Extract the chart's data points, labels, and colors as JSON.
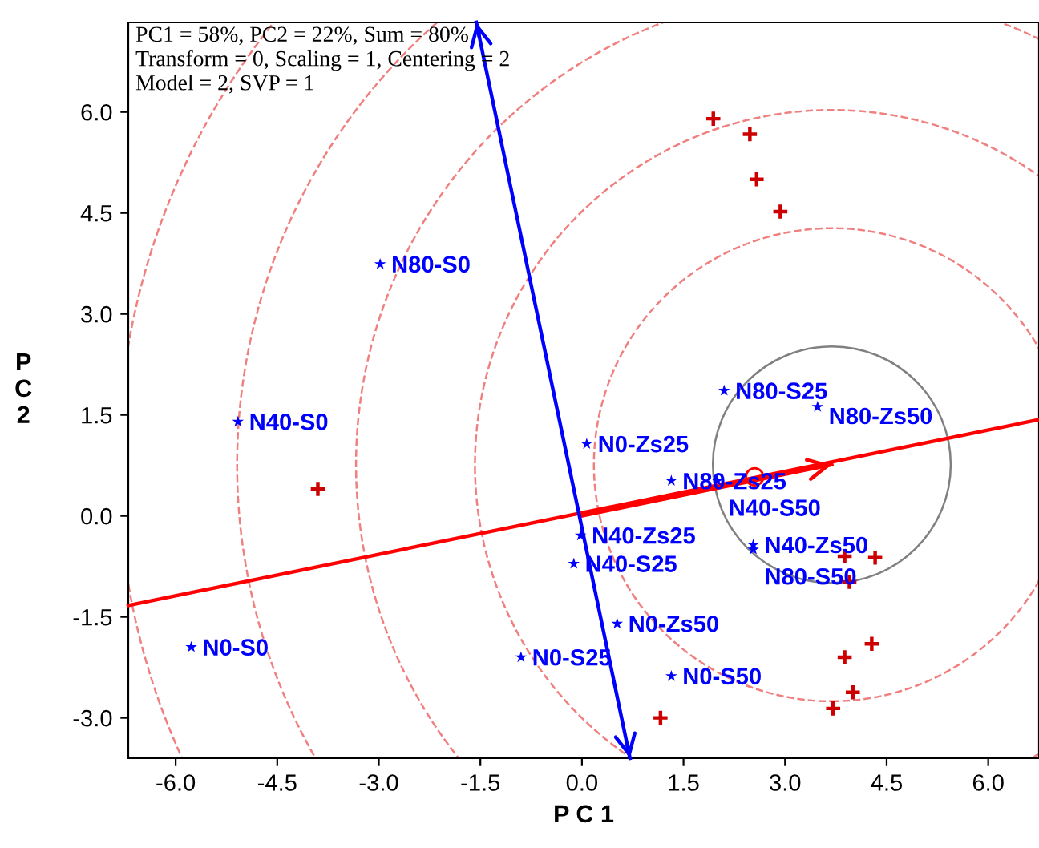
{
  "chart_data": {
    "type": "scatter",
    "xlabel": "P C 1",
    "ylabel": "P C 2",
    "xlim": [
      -6.7,
      6.75
    ],
    "ylim": [
      -3.6,
      7.33
    ],
    "xticks": [
      {
        "value": -6,
        "label": "-6.0"
      },
      -4.5,
      {
        "value": -3,
        "label": "-3.0"
      },
      -1.5,
      {
        "value": 0,
        "label": "0.0"
      },
      1.5,
      {
        "value": 3,
        "label": "3.0"
      },
      4.5,
      {
        "value": 6,
        "label": "6.0"
      }
    ],
    "yticks": [
      {
        "value": -3,
        "label": "-3.0"
      },
      -1.5,
      {
        "value": 0,
        "label": "0.0"
      },
      1.5,
      {
        "value": 3,
        "label": "3.0"
      },
      4.5,
      {
        "value": 6,
        "label": "6.0"
      }
    ],
    "grid": false,
    "legend": false,
    "annotations": [
      "PC1 = 58%, PC2 = 22%, Sum = 80%",
      "Transform = 0, Scaling = 1, Centering = 2",
      "Model = 2, SVP = 1",
      {
        "text": "N80-S0",
        "x": -2.98,
        "y": 3.74
      },
      {
        "text": "N40-S0",
        "x": -5.08,
        "y": 1.4
      },
      {
        "text": "N0-S0",
        "x": -5.77,
        "y": -1.95
      },
      {
        "text": "N80-S25",
        "x": 2.1,
        "y": 1.86
      },
      {
        "text": "N80-Zs50",
        "x": 3.48,
        "y": 1.62
      },
      {
        "text": "N0-Zs25",
        "x": 0.07,
        "y": 1.07
      },
      {
        "text": "N80-Zs25",
        "x": 1.32,
        "y": 0.52
      },
      {
        "text": "N40-S50",
        "x": 2.0,
        "y": 0.52
      },
      {
        "text": "N40-Zs25",
        "x": -0.02,
        "y": -0.29
      },
      {
        "text": "N40-S25",
        "x": -0.12,
        "y": -0.71
      },
      {
        "text": "N40-Zs50",
        "x": 2.53,
        "y": -0.43
      },
      {
        "text": "N80-S50",
        "x": 2.53,
        "y": -0.5
      },
      {
        "text": "N0-Zs50",
        "x": 0.52,
        "y": -1.6
      },
      {
        "text": "N0-S25",
        "x": -0.9,
        "y": -2.1
      },
      {
        "text": "N0-S50",
        "x": 1.32,
        "y": -2.38
      }
    ],
    "series": [
      {
        "marker": "star",
        "color": "#0000ff",
        "x": [
          -2.98,
          -5.08,
          -5.77,
          2.1,
          3.48,
          0.07,
          1.32,
          2.0,
          -0.02,
          -0.12,
          2.53,
          2.53,
          0.52,
          -0.9,
          1.32
        ],
        "values": [
          3.74,
          1.4,
          -1.95,
          1.86,
          1.62,
          1.07,
          0.52,
          0.52,
          -0.29,
          -0.71,
          -0.43,
          -0.5,
          -1.6,
          -2.1,
          -2.38
        ]
      },
      {
        "marker": "cross",
        "color": "#cc0000",
        "x": [
          1.94,
          2.48,
          2.58,
          2.93,
          -3.9,
          3.95,
          3.88,
          4.28,
          4.0,
          3.71,
          1.16,
          3.88,
          4.33
        ],
        "values": [
          5.9,
          5.67,
          5.0,
          4.52,
          0.4,
          -0.98,
          -2.1,
          -1.9,
          -2.62,
          -2.86,
          -3.0,
          -0.6,
          -0.62
        ]
      },
      {
        "marker": "circle",
        "color": "#ff0000",
        "x": [
          2.55
        ],
        "values": [
          0.58
        ]
      },
      {
        "type": "line",
        "color": "#ff0000",
        "line_style": "solid",
        "x": [
          -6.7,
          6.75
        ],
        "values": [
          -1.33,
          1.43
        ]
      },
      {
        "type": "line",
        "color": "#ff0000",
        "line_style": "solid",
        "x": [
          0.0,
          3.69
        ],
        "values": [
          0.0,
          0.76
        ]
      },
      {
        "type": "line",
        "color": "#0000ff",
        "line_style": "solid",
        "x": [
          -1.56,
          0.71
        ],
        "values": [
          7.33,
          -3.6
        ]
      }
    ]
  }
}
